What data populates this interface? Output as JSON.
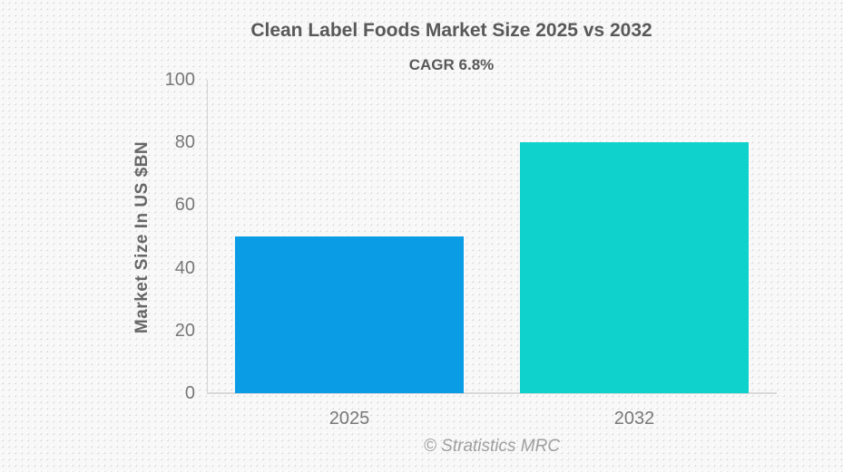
{
  "chart_data": {
    "type": "bar",
    "title": "Clean Label Foods Market Size 2025 vs 2032",
    "subtitle": "CAGR 6.8%",
    "ylabel": "Market Size In US $BN",
    "xlabel": "",
    "categories": [
      "2025",
      "2032"
    ],
    "values": [
      50,
      80
    ],
    "bar_colors": [
      "#0a9de6",
      "#0ed2cb"
    ],
    "ylim": [
      0,
      100
    ],
    "yticks": [
      0,
      20,
      40,
      60,
      80,
      100
    ],
    "grid": false,
    "legend_position": "none",
    "bar_width_fraction": 0.8
  },
  "footer": {
    "credit": "© Stratistics MRC"
  }
}
